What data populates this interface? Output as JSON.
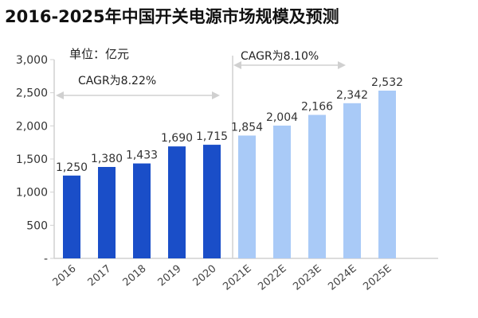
{
  "chart_data": {
    "type": "bar",
    "title": "2016-2025年中国开关电源市场规模及预测",
    "unit_label": "单位：亿元",
    "categories": [
      "2016",
      "2017",
      "2018",
      "2019",
      "2020",
      "2021E",
      "2022E",
      "2023E",
      "2024E",
      "2025E"
    ],
    "values": [
      1250,
      1380,
      1433,
      1690,
      1715,
      1854,
      2004,
      2166,
      2342,
      2532
    ],
    "data_labels": [
      "1,250",
      "1,380",
      "1,433",
      "1,690",
      "1,715",
      "1,854",
      "2,004",
      "2,166",
      "2,342",
      "2,532"
    ],
    "actual_or_forecast": [
      "actual",
      "actual",
      "actual",
      "actual",
      "actual",
      "forecast",
      "forecast",
      "forecast",
      "forecast",
      "forecast"
    ],
    "ylim": [
      0,
      3000
    ],
    "yticks": [
      0,
      500,
      1000,
      1500,
      2000,
      2500,
      3000
    ],
    "ytick_labels": [
      "-",
      "500",
      "1,000",
      "1,500",
      "2,000",
      "2,500",
      "3,000"
    ],
    "grid": false,
    "annotations": [
      "CAGR为8.22%",
      "CAGR为8.10%"
    ],
    "colors": {
      "actual": "#1a4ec8",
      "forecast": "#a9caf7",
      "title": "#111111",
      "text": "#333333",
      "axis": "#d0d0d0"
    }
  }
}
